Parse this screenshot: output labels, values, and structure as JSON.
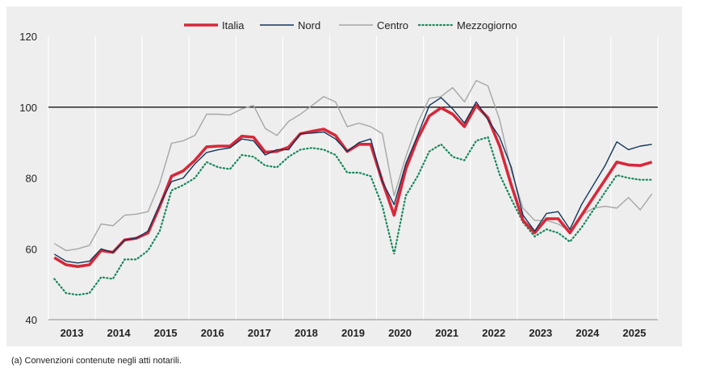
{
  "chart_data": {
    "type": "line",
    "title": "",
    "xlabel": "",
    "ylabel": "",
    "ylim": [
      40,
      120
    ],
    "yticks": [
      40,
      60,
      80,
      100,
      120
    ],
    "reference_line": 100,
    "grid": "vertical separators between years",
    "legend_position": "top-center",
    "x_years": [
      "2013",
      "2014",
      "2015",
      "2016",
      "2017",
      "2018",
      "2019",
      "2020",
      "2021",
      "2022",
      "2023",
      "2024",
      "2025"
    ],
    "x_periods": [
      "2013Q1",
      "2013Q2",
      "2013Q3",
      "2013Q4",
      "2014Q1",
      "2014Q2",
      "2014Q3",
      "2014Q4",
      "2015Q1",
      "2015Q2",
      "2015Q3",
      "2015Q4",
      "2016Q1",
      "2016Q2",
      "2016Q3",
      "2016Q4",
      "2017Q1",
      "2017Q2",
      "2017Q3",
      "2017Q4",
      "2018Q1",
      "2018Q2",
      "2018Q3",
      "2018Q4",
      "2019Q1",
      "2019Q2",
      "2019Q3",
      "2019Q4",
      "2020Q1",
      "2020Q2",
      "2020Q3",
      "2020Q4",
      "2021Q1",
      "2021Q2",
      "2021Q3",
      "2021Q4",
      "2022Q1",
      "2022Q2",
      "2022Q3",
      "2022Q4",
      "2023Q1",
      "2023Q2",
      "2023Q3",
      "2023Q4",
      "2024Q1",
      "2024Q2",
      "2024Q3",
      "2024Q4",
      "2025Q1",
      "2025Q2",
      "2025Q3",
      "2025Q4"
    ],
    "series": [
      {
        "name": "Italia",
        "color": "#d7283a",
        "style": "solid-thick",
        "values": [
          57.5,
          55.5,
          55,
          55.5,
          59.5,
          59,
          62.5,
          63,
          64.5,
          72,
          80.5,
          82,
          85,
          88.8,
          89,
          89,
          91.8,
          91.5,
          87.3,
          87.5,
          88.7,
          92.5,
          93.2,
          93.8,
          92,
          87.5,
          89.5,
          89.5,
          79,
          69.5,
          82.5,
          91,
          97.5,
          99.8,
          98,
          94.5,
          100.5,
          97,
          89,
          78,
          68,
          64.5,
          68.5,
          68.5,
          64.5,
          69.5,
          74.5,
          79.5,
          84.5,
          83.7,
          83.5,
          84.5
        ]
      },
      {
        "name": "Nord",
        "color": "#12355b",
        "style": "solid-thin",
        "values": [
          58.5,
          56.5,
          56,
          56.5,
          60,
          59,
          62.5,
          63,
          65,
          72.5,
          79,
          80,
          84,
          87.2,
          88,
          88.5,
          91,
          90.5,
          86.5,
          88,
          88,
          92.5,
          92.7,
          93,
          91,
          87.5,
          90,
          91,
          79,
          72.5,
          84,
          92,
          100.5,
          102.7,
          99.5,
          95.5,
          101.5,
          96.5,
          91.5,
          83,
          69.5,
          65,
          70,
          70.5,
          65.5,
          72.5,
          78,
          83.5,
          90.2,
          88,
          89,
          89.5
        ]
      },
      {
        "name": "Centro",
        "color": "#a6a6a6",
        "style": "solid-thin",
        "values": [
          61.5,
          59.5,
          60,
          61,
          67,
          66.5,
          69.5,
          69.8,
          70.5,
          78.5,
          89.8,
          90.5,
          92,
          98,
          98,
          97.8,
          99.5,
          100.5,
          94,
          92,
          96,
          98,
          100.5,
          103,
          101.5,
          94.5,
          95.5,
          94.5,
          92.5,
          75,
          86,
          95.5,
          102.5,
          103,
          105.5,
          101.5,
          107.5,
          106,
          96.5,
          82,
          71.5,
          68,
          68,
          67,
          65,
          69.5,
          71.5,
          72,
          71.5,
          74.5,
          71,
          75.5
        ]
      },
      {
        "name": "Mezzogiorno",
        "color": "#16875a",
        "style": "dotted",
        "values": [
          51.5,
          47.5,
          47,
          47.5,
          52,
          51.5,
          57,
          57,
          59.5,
          65,
          76.5,
          78,
          80,
          84.5,
          83,
          82.5,
          86.5,
          86,
          83.5,
          83,
          86,
          88,
          88.5,
          88,
          86.5,
          81.5,
          81.5,
          80.5,
          72,
          58.5,
          75,
          80.5,
          87.5,
          89.5,
          86,
          85,
          90.5,
          91.5,
          81,
          74,
          67.5,
          63.5,
          65.5,
          64.5,
          62,
          66,
          71,
          76,
          80.8,
          80,
          79.5,
          79.5
        ]
      }
    ]
  },
  "footnote": "(a) Convenzioni contenute negli atti notarili."
}
